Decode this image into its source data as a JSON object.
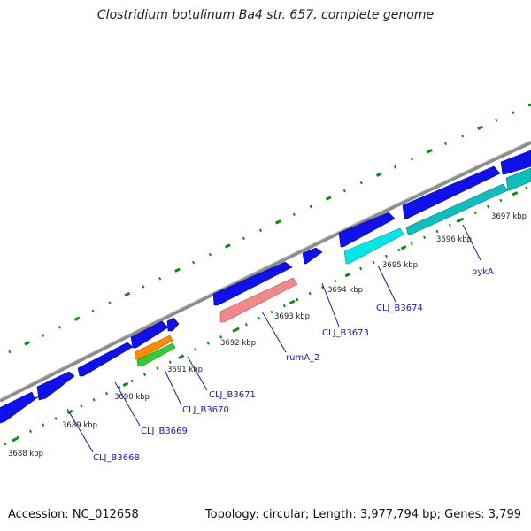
{
  "title": "Clostridium botulinum Ba4 str. 657, complete genome",
  "footer": {
    "accession": "Accession: NC_012658",
    "topology": "Topology: circular; Length: 3,977,794 bp; Genes: 3,799"
  },
  "colors": {
    "backbone": "#8c8c8c",
    "forward_gene": "#1010e8",
    "reverse_gene_cyan": "#00e5e5",
    "reverse_gene_teal": "#11bdbd",
    "reverse_gene_pink": "#f08a8a",
    "reverse_gene_orange": "#ff8c00",
    "reverse_gene_green": "#33cc33",
    "tick": "#118811",
    "label": "#1a1aa8"
  },
  "kbp_labels": [
    "3688 kbp",
    "3689 kbp",
    "3690 kbp",
    "3691 kbp",
    "3692 kbp",
    "3693 kbp",
    "3694 kbp",
    "3695 kbp",
    "3696 kbp",
    "3697 kbp"
  ],
  "gene_labels": [
    "CLJ_B3668",
    "CLJ_B3669",
    "CLJ_B3670",
    "CLJ_B3671",
    "rumA_2",
    "CLJ_B3673",
    "CLJ_B3674",
    "pykA"
  ]
}
